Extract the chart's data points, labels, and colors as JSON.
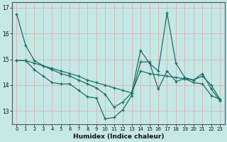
{
  "xlabel": "Humidex (Indice chaleur)",
  "bg_color": "#c5e8e5",
  "grid_color_major": "#e8c8c8",
  "grid_color_white": "#d4eeeb",
  "line_color": "#1a6e65",
  "line1_x": [
    0,
    1,
    2,
    3,
    4,
    5,
    6,
    7,
    8,
    9,
    10,
    11,
    12,
    13,
    14,
    15,
    16,
    17,
    18,
    19,
    20,
    21,
    22,
    23
  ],
  "line1_y": [
    16.75,
    15.55,
    14.95,
    14.75,
    14.6,
    14.45,
    14.35,
    14.2,
    14.05,
    13.9,
    13.65,
    13.15,
    13.35,
    13.7,
    15.35,
    14.85,
    14.55,
    16.8,
    14.85,
    14.3,
    14.2,
    14.45,
    13.85,
    13.4
  ],
  "line2_x": [
    0,
    1,
    2,
    3,
    4,
    5,
    6,
    7,
    8,
    9,
    10,
    11,
    12,
    13,
    14,
    15,
    16,
    17,
    18,
    19,
    20,
    21,
    22,
    23
  ],
  "line2_y": [
    14.95,
    14.95,
    14.85,
    14.75,
    14.65,
    14.55,
    14.45,
    14.35,
    14.2,
    14.1,
    14.0,
    13.9,
    13.8,
    13.7,
    14.55,
    14.45,
    14.4,
    14.35,
    14.3,
    14.25,
    14.2,
    14.35,
    14.0,
    13.45
  ],
  "line3_x": [
    0,
    1,
    2,
    3,
    4,
    5,
    6,
    7,
    8,
    9,
    10,
    11,
    12,
    13,
    14,
    15,
    16,
    17,
    18,
    19,
    20,
    21,
    22,
    23
  ],
  "line3_y": [
    14.95,
    14.95,
    14.6,
    14.35,
    14.1,
    14.05,
    14.05,
    13.8,
    13.55,
    13.5,
    12.7,
    12.75,
    13.05,
    13.6,
    14.9,
    14.9,
    13.85,
    14.55,
    14.15,
    14.25,
    14.1,
    14.05,
    13.6,
    13.45
  ],
  "xlim": [
    -0.5,
    23.5
  ],
  "ylim": [
    12.5,
    17.2
  ],
  "xtick_labels": [
    "0",
    "1",
    "2",
    "3",
    "4",
    "5",
    "6",
    "7",
    "8",
    "9",
    "10",
    "11",
    "12",
    "13",
    "14",
    "15",
    "16",
    "17",
    "18",
    "19",
    "20",
    "21",
    "22",
    "23"
  ],
  "ytick_values": [
    13,
    14,
    15,
    16,
    17
  ]
}
